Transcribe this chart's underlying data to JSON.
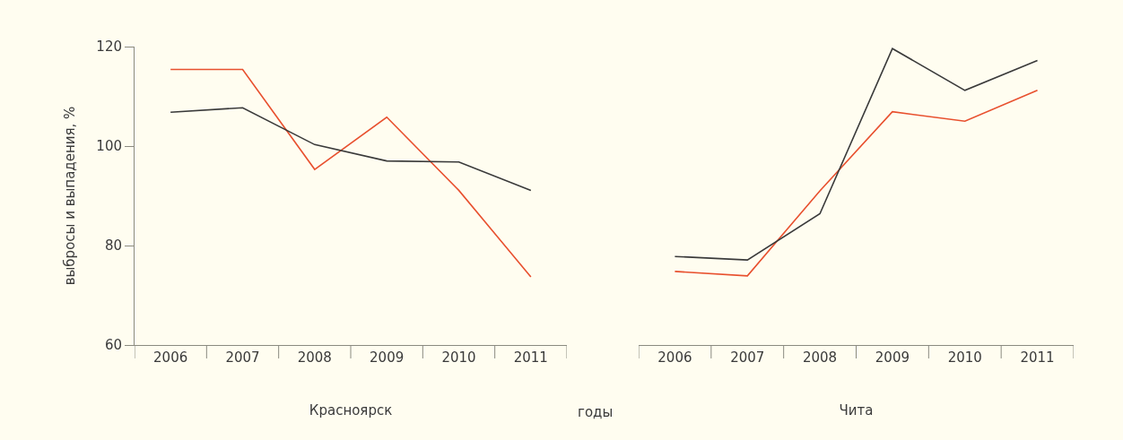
{
  "chart_data": [
    {
      "type": "line",
      "xlabel": "Красноярск",
      "ylabel": "выбросы и выпадения, %",
      "annotations": [
        "годы"
      ],
      "categories": [
        "2006",
        "2007",
        "2008",
        "2009",
        "2010",
        "2011"
      ],
      "series": [
        {
          "color": "#e8502e",
          "values": [
            115.4,
            115.4,
            95.3,
            105.8,
            91.1,
            73.7
          ]
        },
        {
          "color": "#3a3a3a",
          "values": [
            106.8,
            107.7,
            100.3,
            97.0,
            96.8,
            91.1
          ]
        }
      ],
      "ylim": [
        60,
        120
      ],
      "yticks": [
        60,
        80,
        100,
        120
      ],
      "grid": false
    },
    {
      "type": "line",
      "xlabel": "Чита",
      "categories": [
        "2006",
        "2007",
        "2008",
        "2009",
        "2010",
        "2011"
      ],
      "series": [
        {
          "color": "#e8502e",
          "values": [
            74.8,
            73.9,
            91.0,
            106.9,
            105.0,
            111.2
          ]
        },
        {
          "color": "#3a3a3a",
          "values": [
            77.8,
            77.1,
            86.4,
            119.6,
            111.2,
            117.2
          ]
        }
      ],
      "ylim": [
        60,
        120
      ],
      "yticks": [
        60,
        80,
        100,
        120
      ],
      "grid": false,
      "tick_labels": "x"
    }
  ]
}
